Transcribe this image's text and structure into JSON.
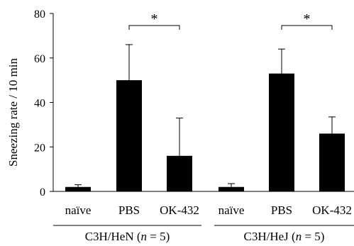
{
  "chart_data": {
    "type": "bar",
    "ylabel": "Sneezing rate / 10 min",
    "ylim": [
      0,
      80
    ],
    "yticks": [
      "0",
      "20",
      "40",
      "60",
      "80"
    ],
    "grid": false,
    "bar_color": "#000000",
    "groups": [
      {
        "label_prefix": "C3H/HeN (",
        "label_italic": "n",
        "label_suffix": " = 5)",
        "bars": [
          {
            "category": "naïve",
            "value": 2,
            "error": 1
          },
          {
            "category": "PBS",
            "value": 50,
            "error": 16
          },
          {
            "category": "OK-432",
            "value": 16,
            "error": 17
          }
        ],
        "significance": {
          "from": "PBS",
          "to": "OK-432",
          "symbol": "*"
        }
      },
      {
        "label_prefix": "C3H/HeJ (",
        "label_italic": "n",
        "label_suffix": " = 5)",
        "bars": [
          {
            "category": "naïve",
            "value": 2,
            "error": 1.5
          },
          {
            "category": "PBS",
            "value": 53,
            "error": 11
          },
          {
            "category": "OK-432",
            "value": 26,
            "error": 7.5
          }
        ],
        "significance": {
          "from": "PBS",
          "to": "OK-432",
          "symbol": "*"
        }
      }
    ]
  }
}
